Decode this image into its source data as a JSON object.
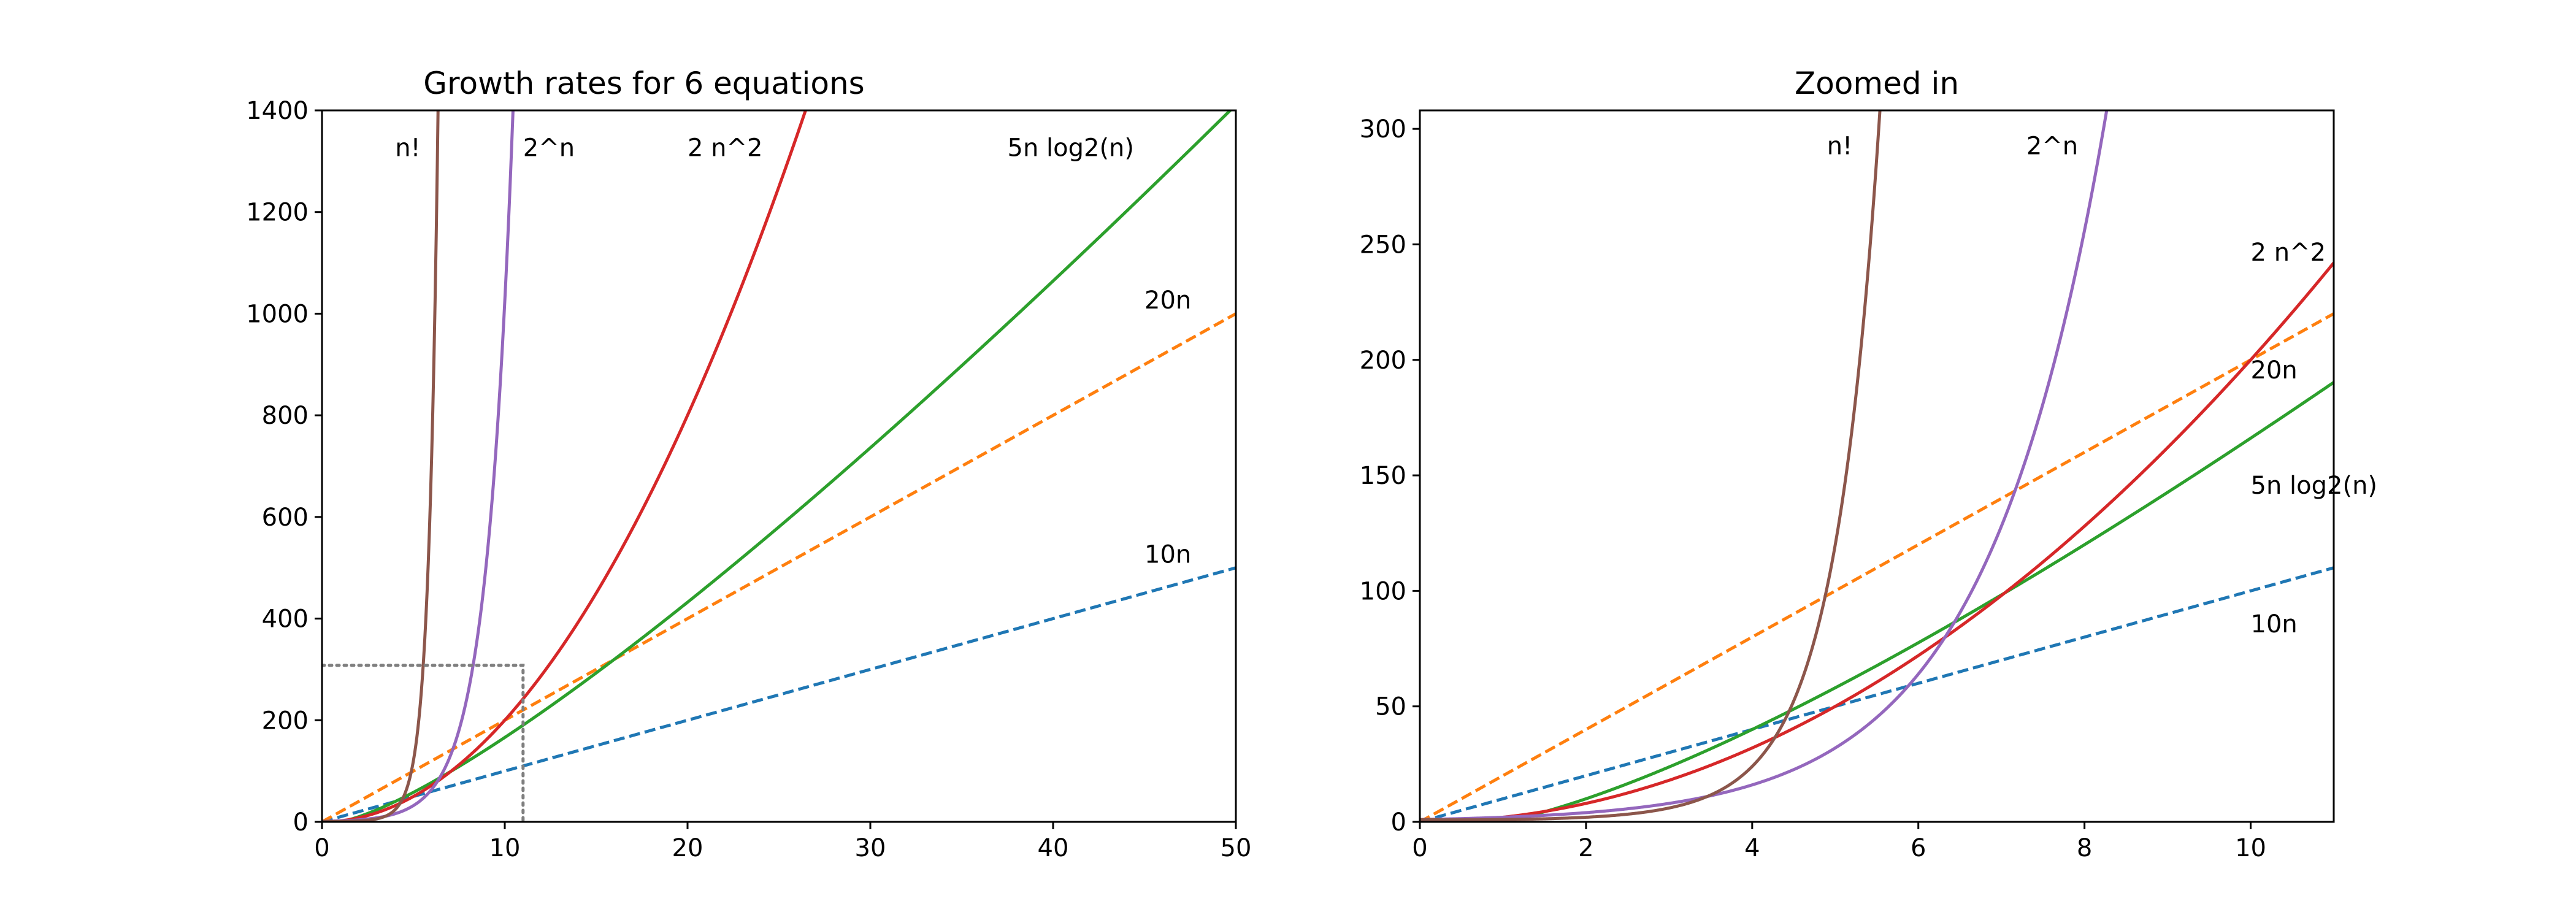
{
  "chart_data": [
    {
      "type": "line",
      "title": "Growth rates for 6 equations",
      "xlabel": "",
      "ylabel": "",
      "xlim": [
        0,
        50
      ],
      "ylim": [
        0,
        1400
      ],
      "grid": false,
      "xticks": [
        0,
        10,
        20,
        30,
        40,
        50
      ],
      "yticks": [
        0,
        200,
        400,
        600,
        800,
        1000,
        1200,
        1400
      ],
      "zoom_box": {
        "x_max": 11,
        "y_max": 308,
        "color": "#7f7f7f",
        "style": "dotted"
      },
      "series": [
        {
          "name": "10n",
          "expr": "10n",
          "color": "#1f77b4",
          "dash": "dashed",
          "label": "10n",
          "label_at": [
            45,
            510
          ]
        },
        {
          "name": "20n",
          "expr": "20n",
          "color": "#ff7f0e",
          "dash": "dashed",
          "label": "20n",
          "label_at": [
            45,
            1010
          ]
        },
        {
          "name": "5n log2(n)",
          "expr": "5nlog2n",
          "color": "#2ca02c",
          "dash": "solid",
          "label": "5n log2(n)",
          "label_at": [
            37.5,
            1310
          ]
        },
        {
          "name": "2 n^2",
          "expr": "2n2",
          "color": "#d62728",
          "dash": "solid",
          "label": "2 n^2",
          "label_at": [
            20,
            1310
          ]
        },
        {
          "name": "2^n",
          "expr": "2pown",
          "color": "#9467bd",
          "dash": "solid",
          "label": "2^n",
          "label_at": [
            11,
            1310
          ]
        },
        {
          "name": "n!",
          "expr": "fact",
          "color": "#8c564b",
          "dash": "solid",
          "label": "n!",
          "label_at": [
            4,
            1310
          ]
        }
      ]
    },
    {
      "type": "line",
      "title": "Zoomed in",
      "xlabel": "",
      "ylabel": "",
      "xlim": [
        0,
        11
      ],
      "ylim": [
        0,
        308
      ],
      "grid": false,
      "xticks": [
        0,
        2,
        4,
        6,
        8,
        10
      ],
      "yticks": [
        0,
        50,
        100,
        150,
        200,
        250,
        300
      ],
      "series": [
        {
          "name": "10n",
          "expr": "10n",
          "color": "#1f77b4",
          "dash": "dashed",
          "label": "10n",
          "label_at": [
            10,
            82
          ]
        },
        {
          "name": "20n",
          "expr": "20n",
          "color": "#ff7f0e",
          "dash": "dashed",
          "label": "20n",
          "label_at": [
            10,
            192
          ]
        },
        {
          "name": "5n log2(n)",
          "expr": "5nlog2n",
          "color": "#2ca02c",
          "dash": "solid",
          "label": "5n log2(n)",
          "label_at": [
            10,
            142
          ]
        },
        {
          "name": "2 n^2",
          "expr": "2n2",
          "color": "#d62728",
          "dash": "solid",
          "label": "2 n^2",
          "label_at": [
            10,
            243
          ]
        },
        {
          "name": "2^n",
          "expr": "2pown",
          "color": "#9467bd",
          "dash": "solid",
          "label": "2^n",
          "label_at": [
            7.3,
            289
          ]
        },
        {
          "name": "n!",
          "expr": "fact",
          "color": "#8c564b",
          "dash": "solid",
          "label": "n!",
          "label_at": [
            4.9,
            289
          ]
        }
      ]
    }
  ]
}
